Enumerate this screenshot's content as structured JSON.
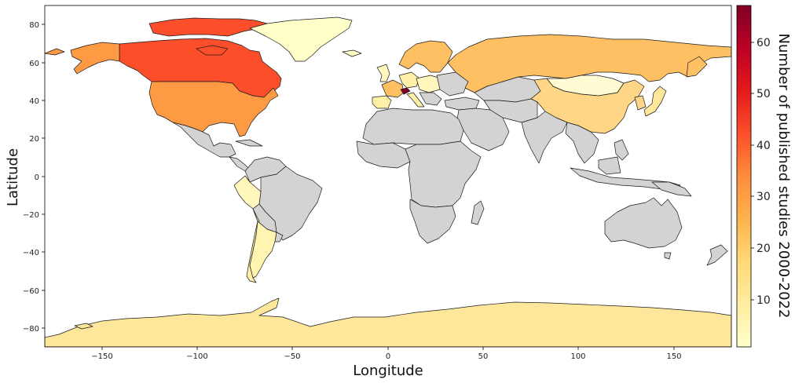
{
  "figure": {
    "x_label": "Longitude",
    "y_label": "Latitude",
    "colorbar_label": "Number of published studies 2000-2022"
  },
  "axes": {
    "x_ticks": [
      {
        "value": -150,
        "label": "−150"
      },
      {
        "value": -100,
        "label": "−100"
      },
      {
        "value": -50,
        "label": "−50"
      },
      {
        "value": 0,
        "label": "0"
      },
      {
        "value": 50,
        "label": "50"
      },
      {
        "value": 100,
        "label": "100"
      },
      {
        "value": 150,
        "label": "150"
      }
    ],
    "y_ticks": [
      {
        "value": 80,
        "label": "80"
      },
      {
        "value": 60,
        "label": "60"
      },
      {
        "value": 40,
        "label": "40"
      },
      {
        "value": 20,
        "label": "20"
      },
      {
        "value": 0,
        "label": "0"
      },
      {
        "value": -20,
        "label": "−20"
      },
      {
        "value": -40,
        "label": "−40"
      },
      {
        "value": -60,
        "label": "−60"
      },
      {
        "value": -80,
        "label": "−80"
      }
    ],
    "xlim": [
      -180,
      180
    ],
    "ylim": [
      -90,
      90
    ]
  },
  "colorbar": {
    "range": [
      1,
      67
    ],
    "ticks": [
      {
        "value": 10,
        "label": "10"
      },
      {
        "value": 20,
        "label": "20"
      },
      {
        "value": 30,
        "label": "30"
      },
      {
        "value": 40,
        "label": "40"
      },
      {
        "value": 50,
        "label": "50"
      },
      {
        "value": 60,
        "label": "60"
      }
    ],
    "colormap": "YlOrRd",
    "no_data_color": "#d3d3d3"
  },
  "chart_data": {
    "type": "choropleth",
    "value_estimates": {
      "Switzerland": 67,
      "Canada": 43,
      "United States": 34,
      "Russia": 22,
      "China": 17,
      "Antarctica": 14,
      "Greenland": 3,
      "Chile": 5,
      "Argentina": 3,
      "Peru": 3,
      "Japan": 10
    }
  }
}
